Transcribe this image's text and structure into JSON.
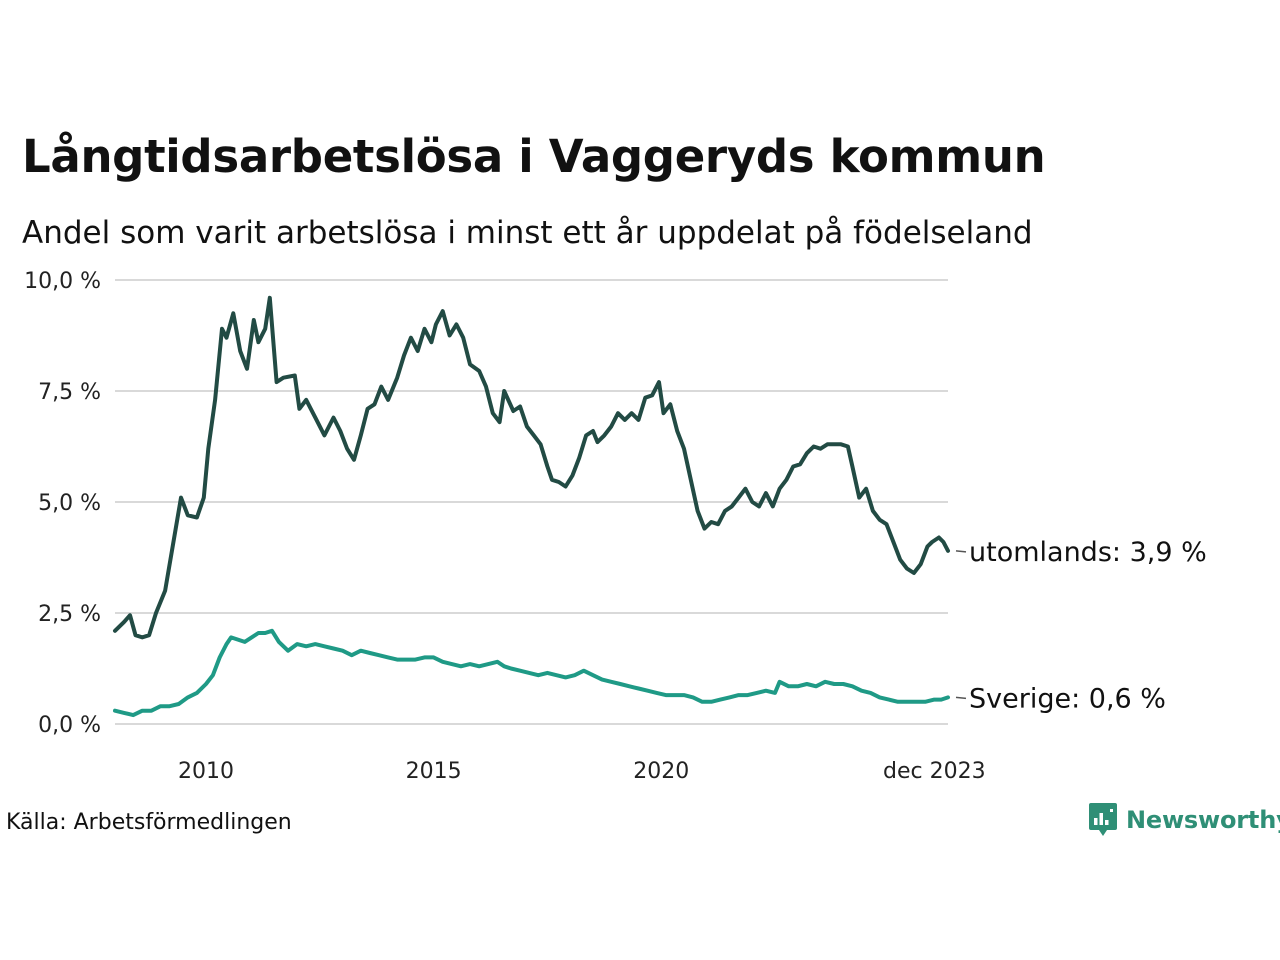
{
  "chart_data": {
    "type": "line",
    "title": "Långtidsarbetslösa i Vaggeryds kommun",
    "subtitle": "Andel som varit arbetslösa i minst ett år uppdelat på födelseland",
    "ylim": [
      0,
      10
    ],
    "y_ticks": [
      "0,0 %",
      "2,5 %",
      "5,0 %",
      "7,5 %",
      "10,0 %"
    ],
    "x_ticks": [
      "2010",
      "2015",
      "2020",
      "dec 2023"
    ],
    "grid": true,
    "series": [
      {
        "name": "utomlands",
        "label": "utomlands: 3,9 %",
        "color": "#224b44",
        "points": [
          [
            2008.0,
            2.1
          ],
          [
            2008.2,
            2.3
          ],
          [
            2008.33,
            2.45
          ],
          [
            2008.45,
            2.0
          ],
          [
            2008.6,
            1.95
          ],
          [
            2008.75,
            2.0
          ],
          [
            2008.9,
            2.5
          ],
          [
            2009.1,
            3.0
          ],
          [
            2009.3,
            4.2
          ],
          [
            2009.45,
            5.1
          ],
          [
            2009.6,
            4.7
          ],
          [
            2009.8,
            4.65
          ],
          [
            2009.95,
            5.1
          ],
          [
            2010.05,
            6.2
          ],
          [
            2010.2,
            7.3
          ],
          [
            2010.35,
            8.9
          ],
          [
            2010.45,
            8.7
          ],
          [
            2010.6,
            9.25
          ],
          [
            2010.75,
            8.4
          ],
          [
            2010.9,
            8.0
          ],
          [
            2011.05,
            9.1
          ],
          [
            2011.15,
            8.6
          ],
          [
            2011.3,
            8.9
          ],
          [
            2011.4,
            9.6
          ],
          [
            2011.55,
            7.7
          ],
          [
            2011.7,
            7.8
          ],
          [
            2011.95,
            7.85
          ],
          [
            2012.05,
            7.1
          ],
          [
            2012.2,
            7.3
          ],
          [
            2012.4,
            6.9
          ],
          [
            2012.6,
            6.5
          ],
          [
            2012.8,
            6.9
          ],
          [
            2012.95,
            6.6
          ],
          [
            2013.1,
            6.2
          ],
          [
            2013.25,
            5.95
          ],
          [
            2013.4,
            6.5
          ],
          [
            2013.55,
            7.1
          ],
          [
            2013.7,
            7.2
          ],
          [
            2013.85,
            7.6
          ],
          [
            2014.0,
            7.3
          ],
          [
            2014.2,
            7.8
          ],
          [
            2014.35,
            8.3
          ],
          [
            2014.5,
            8.7
          ],
          [
            2014.65,
            8.4
          ],
          [
            2014.8,
            8.9
          ],
          [
            2014.95,
            8.6
          ],
          [
            2015.05,
            9.0
          ],
          [
            2015.2,
            9.3
          ],
          [
            2015.35,
            8.75
          ],
          [
            2015.5,
            9.0
          ],
          [
            2015.65,
            8.7
          ],
          [
            2015.8,
            8.1
          ],
          [
            2016.0,
            7.95
          ],
          [
            2016.15,
            7.6
          ],
          [
            2016.3,
            7.0
          ],
          [
            2016.45,
            6.8
          ],
          [
            2016.55,
            7.5
          ],
          [
            2016.75,
            7.05
          ],
          [
            2016.9,
            7.15
          ],
          [
            2017.05,
            6.7
          ],
          [
            2017.2,
            6.5
          ],
          [
            2017.35,
            6.3
          ],
          [
            2017.5,
            5.8
          ],
          [
            2017.6,
            5.5
          ],
          [
            2017.75,
            5.45
          ],
          [
            2017.9,
            5.35
          ],
          [
            2018.05,
            5.6
          ],
          [
            2018.2,
            6.0
          ],
          [
            2018.35,
            6.5
          ],
          [
            2018.5,
            6.6
          ],
          [
            2018.6,
            6.35
          ],
          [
            2018.75,
            6.5
          ],
          [
            2018.9,
            6.7
          ],
          [
            2019.05,
            7.0
          ],
          [
            2019.2,
            6.85
          ],
          [
            2019.35,
            7.0
          ],
          [
            2019.5,
            6.85
          ],
          [
            2019.65,
            7.35
          ],
          [
            2019.8,
            7.4
          ],
          [
            2019.95,
            7.7
          ],
          [
            2020.05,
            7.0
          ],
          [
            2020.2,
            7.2
          ],
          [
            2020.35,
            6.6
          ],
          [
            2020.5,
            6.2
          ],
          [
            2020.65,
            5.5
          ],
          [
            2020.8,
            4.8
          ],
          [
            2020.95,
            4.4
          ],
          [
            2021.1,
            4.55
          ],
          [
            2021.25,
            4.5
          ],
          [
            2021.4,
            4.8
          ],
          [
            2021.55,
            4.9
          ],
          [
            2021.7,
            5.1
          ],
          [
            2021.85,
            5.3
          ],
          [
            2022.0,
            5.0
          ],
          [
            2022.15,
            4.9
          ],
          [
            2022.3,
            5.2
          ],
          [
            2022.45,
            4.9
          ],
          [
            2022.6,
            5.3
          ],
          [
            2022.75,
            5.5
          ],
          [
            2022.9,
            5.8
          ],
          [
            2023.05,
            5.85
          ],
          [
            2023.2,
            6.1
          ],
          [
            2023.35,
            6.25
          ],
          [
            2023.5,
            6.2
          ],
          [
            2023.65,
            6.3
          ],
          [
            2023.8,
            6.3
          ],
          [
            2023.95,
            6.3
          ],
          [
            2024.1,
            6.25
          ],
          [
            2024.2,
            5.8
          ],
          [
            2024.35,
            5.1
          ],
          [
            2024.5,
            5.3
          ],
          [
            2024.65,
            4.8
          ],
          [
            2024.8,
            4.6
          ],
          [
            2024.95,
            4.5
          ],
          [
            2025.1,
            4.1
          ],
          [
            2025.25,
            3.7
          ],
          [
            2025.4,
            3.5
          ],
          [
            2025.55,
            3.4
          ],
          [
            2025.7,
            3.6
          ],
          [
            2025.85,
            4.0
          ],
          [
            2025.95,
            4.1
          ],
          [
            2026.1,
            4.2
          ],
          [
            2026.2,
            4.1
          ],
          [
            2026.3,
            3.9
          ]
        ]
      },
      {
        "name": "Sverige",
        "label": "Sverige: 0,6 %",
        "color": "#1f9a86",
        "points": [
          [
            2008.0,
            0.3
          ],
          [
            2008.2,
            0.25
          ],
          [
            2008.4,
            0.2
          ],
          [
            2008.6,
            0.3
          ],
          [
            2008.8,
            0.3
          ],
          [
            2009.0,
            0.4
          ],
          [
            2009.2,
            0.4
          ],
          [
            2009.4,
            0.45
          ],
          [
            2009.6,
            0.6
          ],
          [
            2009.8,
            0.7
          ],
          [
            2010.0,
            0.9
          ],
          [
            2010.15,
            1.1
          ],
          [
            2010.3,
            1.5
          ],
          [
            2010.45,
            1.8
          ],
          [
            2010.55,
            1.95
          ],
          [
            2010.7,
            1.9
          ],
          [
            2010.85,
            1.85
          ],
          [
            2011.0,
            1.95
          ],
          [
            2011.15,
            2.05
          ],
          [
            2011.3,
            2.05
          ],
          [
            2011.45,
            2.1
          ],
          [
            2011.6,
            1.85
          ],
          [
            2011.8,
            1.65
          ],
          [
            2012.0,
            1.8
          ],
          [
            2012.2,
            1.75
          ],
          [
            2012.4,
            1.8
          ],
          [
            2012.6,
            1.75
          ],
          [
            2012.8,
            1.7
          ],
          [
            2013.0,
            1.65
          ],
          [
            2013.2,
            1.55
          ],
          [
            2013.4,
            1.65
          ],
          [
            2013.6,
            1.6
          ],
          [
            2013.8,
            1.55
          ],
          [
            2014.0,
            1.5
          ],
          [
            2014.2,
            1.45
          ],
          [
            2014.4,
            1.45
          ],
          [
            2014.6,
            1.45
          ],
          [
            2014.8,
            1.5
          ],
          [
            2015.0,
            1.5
          ],
          [
            2015.2,
            1.4
          ],
          [
            2015.4,
            1.35
          ],
          [
            2015.6,
            1.3
          ],
          [
            2015.8,
            1.35
          ],
          [
            2016.0,
            1.3
          ],
          [
            2016.2,
            1.35
          ],
          [
            2016.4,
            1.4
          ],
          [
            2016.55,
            1.3
          ],
          [
            2016.7,
            1.25
          ],
          [
            2016.9,
            1.2
          ],
          [
            2017.1,
            1.15
          ],
          [
            2017.3,
            1.1
          ],
          [
            2017.5,
            1.15
          ],
          [
            2017.7,
            1.1
          ],
          [
            2017.9,
            1.05
          ],
          [
            2018.1,
            1.1
          ],
          [
            2018.3,
            1.2
          ],
          [
            2018.5,
            1.1
          ],
          [
            2018.7,
            1.0
          ],
          [
            2018.9,
            0.95
          ],
          [
            2019.1,
            0.9
          ],
          [
            2019.3,
            0.85
          ],
          [
            2019.5,
            0.8
          ],
          [
            2019.7,
            0.75
          ],
          [
            2019.9,
            0.7
          ],
          [
            2020.1,
            0.65
          ],
          [
            2020.3,
            0.65
          ],
          [
            2020.5,
            0.65
          ],
          [
            2020.7,
            0.6
          ],
          [
            2020.9,
            0.5
          ],
          [
            2021.1,
            0.5
          ],
          [
            2021.3,
            0.55
          ],
          [
            2021.5,
            0.6
          ],
          [
            2021.7,
            0.65
          ],
          [
            2021.9,
            0.65
          ],
          [
            2022.1,
            0.7
          ],
          [
            2022.3,
            0.75
          ],
          [
            2022.5,
            0.7
          ],
          [
            2022.6,
            0.95
          ],
          [
            2022.8,
            0.85
          ],
          [
            2023.0,
            0.85
          ],
          [
            2023.2,
            0.9
          ],
          [
            2023.4,
            0.85
          ],
          [
            2023.6,
            0.95
          ],
          [
            2023.8,
            0.9
          ],
          [
            2024.0,
            0.9
          ],
          [
            2024.2,
            0.85
          ],
          [
            2024.4,
            0.75
          ],
          [
            2024.6,
            0.7
          ],
          [
            2024.8,
            0.6
          ],
          [
            2025.0,
            0.55
          ],
          [
            2025.2,
            0.5
          ],
          [
            2025.4,
            0.5
          ],
          [
            2025.6,
            0.5
          ],
          [
            2025.8,
            0.5
          ],
          [
            2026.0,
            0.55
          ],
          [
            2026.15,
            0.55
          ],
          [
            2026.3,
            0.6
          ]
        ]
      }
    ]
  },
  "source": "Källa: Arbetsförmedlingen",
  "brand": "Newsworthy",
  "colors": {
    "grid": "#d9d9d9",
    "brand": "#2f8f76"
  },
  "icons": {
    "brand_logo": "newsworthy-logo-icon"
  }
}
